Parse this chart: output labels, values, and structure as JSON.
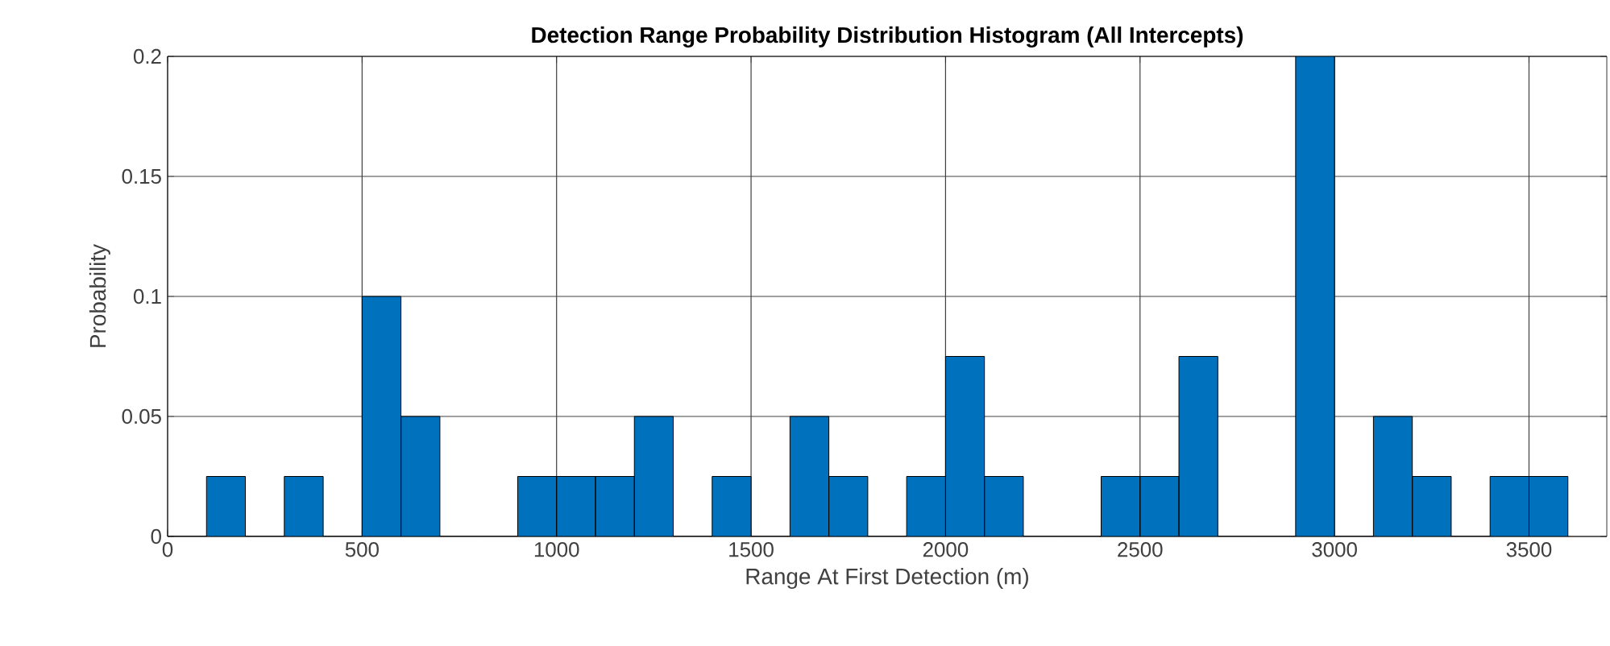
{
  "chart_data": {
    "type": "histogram",
    "title": "Detection Range Probability Distribution Histogram (All Intercepts)",
    "xlabel": "Range At First Detection (m)",
    "ylabel": "Probability",
    "bins": [
      0,
      100,
      200,
      300,
      400,
      500,
      600,
      700,
      800,
      900,
      1000,
      1100,
      1200,
      1300,
      1400,
      1500,
      1600,
      1700,
      1800,
      1900,
      2000,
      2100,
      2200,
      2300,
      2400,
      2500,
      2600,
      2700,
      2800,
      2900,
      3000,
      3100,
      3200,
      3300,
      3400,
      3500,
      3600
    ],
    "values": [
      0,
      0.025,
      0,
      0.025,
      0,
      0.1,
      0.05,
      0,
      0,
      0.025,
      0.025,
      0.025,
      0.05,
      0,
      0.025,
      0,
      0.05,
      0.025,
      0,
      0.025,
      0.075,
      0.025,
      0,
      0,
      0.025,
      0.025,
      0.075,
      0,
      0,
      0.2,
      0,
      0.05,
      0.025,
      0,
      0.025,
      0.025
    ],
    "color": "#0072bd",
    "xlim": [
      0,
      3700
    ],
    "ylim": [
      0,
      0.2
    ],
    "xticks": [
      0,
      500,
      1000,
      1500,
      2000,
      2500,
      3000,
      3500
    ],
    "yticks": [
      0,
      0.05,
      0.1,
      0.15,
      0.2
    ],
    "grid": true
  }
}
